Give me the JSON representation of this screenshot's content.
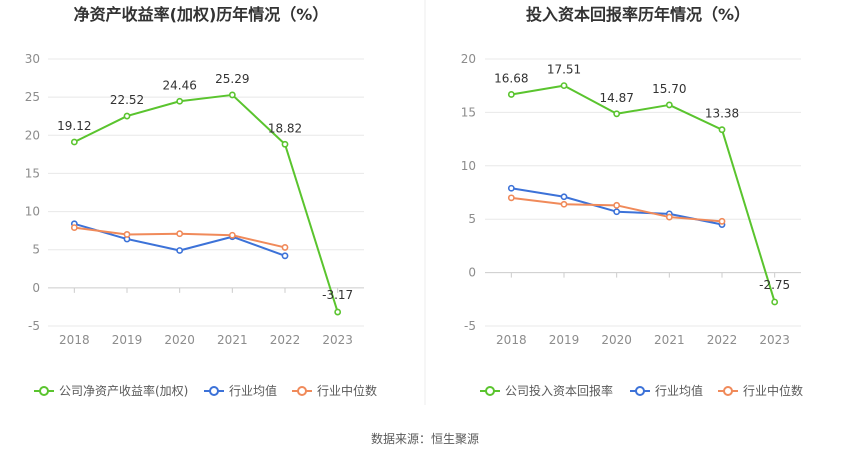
{
  "source_label": "数据来源：恒生聚源",
  "chart_data": [
    {
      "type": "line",
      "title": "净资产收益率(加权)历年情况（%）",
      "categories": [
        "2018",
        "2019",
        "2020",
        "2021",
        "2022",
        "2023"
      ],
      "ylim": [
        -5,
        30
      ],
      "yticks": [
        -5,
        0,
        5,
        10,
        15,
        20,
        25,
        30
      ],
      "grid": true,
      "legend_position": "bottom",
      "series": [
        {
          "name": "公司净资产收益率(加权)",
          "color": "#5ac42e",
          "values": [
            19.12,
            22.52,
            24.46,
            25.29,
            18.82,
            -3.17
          ],
          "labels": [
            "19.12",
            "22.52",
            "24.46",
            "25.29",
            "18.82",
            "-3.17"
          ]
        },
        {
          "name": "行业均值",
          "color": "#3c72d8",
          "values": [
            8.4,
            6.4,
            4.9,
            6.7,
            4.2,
            null
          ],
          "labels": null
        },
        {
          "name": "行业中位数",
          "color": "#f08a5a",
          "values": [
            7.9,
            7.0,
            7.1,
            6.9,
            5.3,
            null
          ],
          "labels": null
        }
      ]
    },
    {
      "type": "line",
      "title": "投入资本回报率历年情况（%）",
      "categories": [
        "2018",
        "2019",
        "2020",
        "2021",
        "2022",
        "2023"
      ],
      "ylim": [
        -5,
        20
      ],
      "yticks": [
        -5,
        0,
        5,
        10,
        15,
        20
      ],
      "grid": true,
      "legend_position": "bottom",
      "series": [
        {
          "name": "公司投入资本回报率",
          "color": "#5ac42e",
          "values": [
            16.68,
            17.51,
            14.87,
            15.7,
            13.38,
            -2.75
          ],
          "labels": [
            "16.68",
            "17.51",
            "14.87",
            "15.70",
            "13.38",
            "-2.75"
          ]
        },
        {
          "name": "行业均值",
          "color": "#3c72d8",
          "values": [
            7.9,
            7.1,
            5.7,
            5.5,
            4.5,
            null
          ],
          "labels": null
        },
        {
          "name": "行业中位数",
          "color": "#f08a5a",
          "values": [
            7.0,
            6.4,
            6.3,
            5.2,
            4.8,
            null
          ],
          "labels": null
        }
      ]
    }
  ]
}
